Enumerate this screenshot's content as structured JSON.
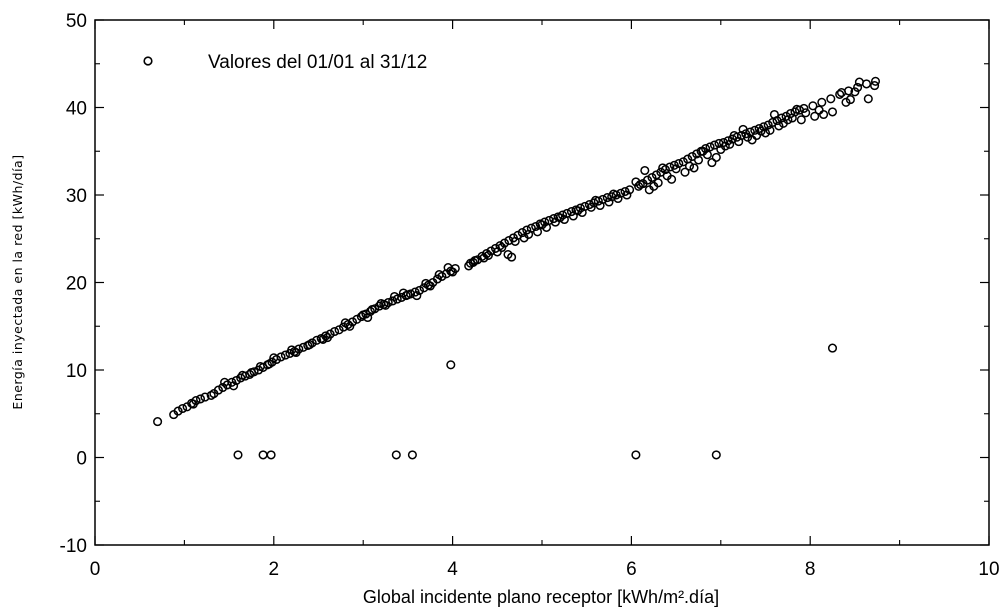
{
  "chart_data": {
    "type": "scatter",
    "xlabel": "Global incidente plano receptor [kWh/m².día]",
    "ylabel": "Energía   inyectada   en   la   red   [kWh/día]",
    "xlim": [
      0,
      10
    ],
    "ylim": [
      -10,
      50
    ],
    "x_ticks": [
      0,
      2,
      4,
      6,
      8,
      10
    ],
    "x_tick_labels": [
      "0",
      "2",
      "4",
      "6",
      "8",
      "10"
    ],
    "y_ticks": [
      -10,
      0,
      10,
      20,
      30,
      40,
      50
    ],
    "y_tick_labels": [
      "-10",
      "0",
      "10",
      "20",
      "30",
      "40",
      "50"
    ],
    "grid": false,
    "legend_position": "top-left",
    "marker_color": "#000000",
    "series": [
      {
        "name": "Valores del 01/01 al 31/12",
        "marker": "open-circle",
        "points": [
          [
            0.7,
            4.1
          ],
          [
            0.88,
            4.9
          ],
          [
            0.93,
            5.3
          ],
          [
            0.98,
            5.6
          ],
          [
            1.03,
            5.8
          ],
          [
            1.08,
            6.2
          ],
          [
            1.13,
            6.5
          ],
          [
            1.18,
            6.7
          ],
          [
            1.23,
            6.9
          ],
          [
            1.33,
            7.3
          ],
          [
            1.38,
            7.7
          ],
          [
            1.43,
            8.0
          ],
          [
            1.48,
            8.3
          ],
          [
            1.53,
            8.6
          ],
          [
            1.58,
            8.8
          ],
          [
            1.63,
            9.1
          ],
          [
            1.68,
            9.3
          ],
          [
            1.73,
            9.5
          ],
          [
            1.78,
            9.8
          ],
          [
            1.83,
            10.0
          ],
          [
            1.88,
            10.3
          ],
          [
            1.93,
            10.6
          ],
          [
            1.98,
            10.9
          ],
          [
            2.03,
            11.2
          ],
          [
            2.08,
            11.5
          ],
          [
            2.13,
            11.7
          ],
          [
            2.18,
            11.9
          ],
          [
            2.23,
            12.1
          ],
          [
            2.28,
            12.4
          ],
          [
            2.33,
            12.6
          ],
          [
            2.38,
            12.8
          ],
          [
            2.43,
            13.1
          ],
          [
            2.48,
            13.4
          ],
          [
            2.53,
            13.6
          ],
          [
            2.58,
            13.9
          ],
          [
            2.63,
            14.1
          ],
          [
            2.68,
            14.4
          ],
          [
            2.73,
            14.6
          ],
          [
            2.78,
            14.9
          ],
          [
            2.83,
            15.2
          ],
          [
            2.88,
            15.5
          ],
          [
            2.93,
            15.8
          ],
          [
            2.98,
            16.1
          ],
          [
            3.03,
            16.4
          ],
          [
            3.08,
            16.7
          ],
          [
            3.13,
            17.0
          ],
          [
            3.18,
            17.3
          ],
          [
            3.23,
            17.5
          ],
          [
            3.28,
            17.7
          ],
          [
            3.33,
            17.9
          ],
          [
            3.38,
            18.1
          ],
          [
            3.43,
            18.3
          ],
          [
            3.48,
            18.5
          ],
          [
            3.53,
            18.7
          ],
          [
            3.58,
            18.9
          ],
          [
            3.63,
            19.1
          ],
          [
            3.68,
            19.4
          ],
          [
            3.73,
            19.7
          ],
          [
            3.78,
            20.0
          ],
          [
            3.83,
            20.4
          ],
          [
            3.88,
            20.7
          ],
          [
            3.93,
            21.0
          ],
          [
            3.98,
            21.3
          ],
          [
            4.03,
            21.6
          ],
          [
            4.18,
            21.9
          ],
          [
            4.23,
            22.3
          ],
          [
            4.28,
            22.6
          ],
          [
            4.33,
            23.0
          ],
          [
            4.38,
            23.3
          ],
          [
            4.43,
            23.6
          ],
          [
            4.48,
            23.9
          ],
          [
            4.53,
            24.2
          ],
          [
            4.58,
            24.5
          ],
          [
            4.63,
            24.8
          ],
          [
            4.68,
            25.1
          ],
          [
            4.73,
            25.4
          ],
          [
            4.78,
            25.7
          ],
          [
            4.83,
            26.0
          ],
          [
            4.88,
            26.2
          ],
          [
            4.93,
            26.4
          ],
          [
            4.98,
            26.7
          ],
          [
            5.03,
            26.9
          ],
          [
            5.08,
            27.1
          ],
          [
            5.13,
            27.3
          ],
          [
            5.18,
            27.5
          ],
          [
            5.23,
            27.7
          ],
          [
            5.28,
            27.9
          ],
          [
            5.33,
            28.1
          ],
          [
            5.38,
            28.3
          ],
          [
            5.43,
            28.5
          ],
          [
            5.48,
            28.7
          ],
          [
            5.53,
            28.9
          ],
          [
            5.58,
            29.1
          ],
          [
            5.63,
            29.3
          ],
          [
            5.68,
            29.5
          ],
          [
            5.73,
            29.7
          ],
          [
            5.78,
            29.8
          ],
          [
            5.83,
            30.0
          ],
          [
            5.88,
            30.2
          ],
          [
            5.93,
            30.4
          ],
          [
            5.98,
            30.6
          ],
          [
            6.08,
            31.0
          ],
          [
            6.13,
            31.3
          ],
          [
            6.18,
            31.7
          ],
          [
            6.23,
            32.0
          ],
          [
            6.28,
            32.3
          ],
          [
            6.33,
            32.6
          ],
          [
            6.38,
            32.9
          ],
          [
            6.43,
            33.2
          ],
          [
            6.48,
            33.4
          ],
          [
            6.53,
            33.6
          ],
          [
            6.58,
            33.8
          ],
          [
            6.63,
            34.1
          ],
          [
            6.68,
            34.4
          ],
          [
            6.73,
            34.7
          ],
          [
            6.78,
            35.0
          ],
          [
            6.83,
            35.3
          ],
          [
            6.88,
            35.5
          ],
          [
            6.93,
            35.7
          ],
          [
            6.98,
            35.9
          ],
          [
            7.03,
            36.0
          ],
          [
            7.08,
            36.2
          ],
          [
            7.13,
            36.4
          ],
          [
            7.18,
            36.6
          ],
          [
            7.23,
            36.8
          ],
          [
            7.28,
            37.0
          ],
          [
            7.33,
            37.2
          ],
          [
            7.38,
            37.4
          ],
          [
            7.43,
            37.6
          ],
          [
            7.48,
            37.8
          ],
          [
            7.53,
            38.0
          ],
          [
            7.58,
            38.3
          ],
          [
            7.63,
            38.5
          ],
          [
            7.68,
            38.8
          ],
          [
            7.73,
            39.0
          ],
          [
            7.78,
            39.3
          ],
          [
            7.83,
            39.5
          ],
          [
            7.88,
            39.7
          ],
          [
            7.93,
            39.9
          ],
          [
            8.03,
            40.2
          ],
          [
            8.13,
            40.6
          ],
          [
            8.23,
            41.0
          ],
          [
            8.33,
            41.5
          ],
          [
            8.43,
            41.9
          ],
          [
            8.53,
            42.3
          ],
          [
            8.63,
            42.7
          ],
          [
            8.73,
            43.0
          ],
          [
            1.1,
            6.1
          ],
          [
            1.3,
            7.1
          ],
          [
            1.55,
            8.2
          ],
          [
            1.75,
            9.7
          ],
          [
            1.85,
            10.4
          ],
          [
            2.0,
            11.4
          ],
          [
            2.2,
            12.3
          ],
          [
            2.4,
            12.9
          ],
          [
            2.6,
            13.7
          ],
          [
            2.8,
            15.4
          ],
          [
            3.0,
            16.3
          ],
          [
            3.1,
            16.9
          ],
          [
            3.2,
            17.6
          ],
          [
            3.35,
            18.4
          ],
          [
            3.45,
            18.8
          ],
          [
            3.6,
            18.5
          ],
          [
            3.7,
            19.9
          ],
          [
            3.85,
            20.9
          ],
          [
            3.95,
            21.7
          ],
          [
            4.2,
            22.2
          ],
          [
            4.35,
            22.8
          ],
          [
            4.5,
            23.5
          ],
          [
            4.62,
            23.2
          ],
          [
            4.66,
            22.9
          ],
          [
            4.8,
            25.1
          ],
          [
            4.95,
            25.8
          ],
          [
            5.05,
            26.3
          ],
          [
            5.15,
            26.9
          ],
          [
            5.25,
            27.2
          ],
          [
            5.35,
            27.6
          ],
          [
            5.45,
            28.0
          ],
          [
            5.55,
            28.6
          ],
          [
            5.65,
            28.8
          ],
          [
            5.75,
            29.2
          ],
          [
            5.85,
            29.6
          ],
          [
            5.95,
            30.0
          ],
          [
            6.05,
            31.5
          ],
          [
            6.15,
            32.8
          ],
          [
            6.2,
            30.6
          ],
          [
            6.25,
            31.0
          ],
          [
            6.3,
            31.4
          ],
          [
            6.35,
            33.1
          ],
          [
            6.4,
            32.2
          ],
          [
            6.45,
            31.8
          ],
          [
            6.5,
            33.0
          ],
          [
            6.6,
            32.6
          ],
          [
            6.7,
            33.1
          ],
          [
            6.75,
            34.0
          ],
          [
            6.85,
            34.6
          ],
          [
            6.9,
            33.7
          ],
          [
            6.95,
            34.3
          ],
          [
            7.0,
            35.2
          ],
          [
            7.1,
            35.8
          ],
          [
            7.15,
            36.8
          ],
          [
            7.2,
            36.1
          ],
          [
            7.25,
            37.5
          ],
          [
            7.3,
            36.6
          ],
          [
            7.35,
            36.3
          ],
          [
            7.4,
            36.8
          ],
          [
            7.5,
            37.1
          ],
          [
            7.55,
            37.4
          ],
          [
            7.6,
            39.2
          ],
          [
            7.65,
            37.9
          ],
          [
            7.7,
            38.2
          ],
          [
            7.75,
            38.6
          ],
          [
            7.8,
            38.8
          ],
          [
            7.9,
            38.6
          ],
          [
            7.95,
            39.4
          ],
          [
            8.05,
            39.0
          ],
          [
            8.15,
            39.2
          ],
          [
            8.25,
            39.5
          ],
          [
            8.35,
            41.7
          ],
          [
            8.45,
            40.9
          ],
          [
            8.55,
            42.9
          ],
          [
            8.65,
            41.0
          ],
          [
            8.72,
            42.5
          ],
          [
            1.45,
            8.6
          ],
          [
            1.65,
            9.4
          ],
          [
            1.95,
            10.7
          ],
          [
            2.25,
            12.0
          ],
          [
            2.55,
            13.5
          ],
          [
            2.85,
            15.0
          ],
          [
            3.05,
            16.0
          ],
          [
            3.25,
            17.4
          ],
          [
            3.5,
            18.6
          ],
          [
            3.75,
            19.6
          ],
          [
            4.0,
            21.2
          ],
          [
            4.25,
            22.5
          ],
          [
            4.4,
            23.1
          ],
          [
            4.55,
            24.0
          ],
          [
            4.7,
            24.7
          ],
          [
            4.85,
            25.5
          ],
          [
            5.0,
            26.6
          ],
          [
            5.2,
            27.4
          ],
          [
            5.4,
            28.2
          ],
          [
            5.6,
            29.4
          ],
          [
            5.8,
            30.1
          ],
          [
            6.1,
            31.2
          ],
          [
            6.65,
            33.3
          ],
          [
            6.8,
            35.0
          ],
          [
            7.05,
            35.6
          ],
          [
            7.45,
            37.3
          ],
          [
            7.85,
            39.8
          ],
          [
            8.1,
            39.7
          ],
          [
            8.4,
            40.6
          ],
          [
            8.5,
            41.8
          ],
          [
            1.6,
            0.3
          ],
          [
            1.88,
            0.3
          ],
          [
            1.97,
            0.3
          ],
          [
            3.37,
            0.3
          ],
          [
            3.55,
            0.3
          ],
          [
            6.05,
            0.3
          ],
          [
            6.95,
            0.3
          ],
          [
            3.98,
            10.6
          ],
          [
            8.25,
            12.5
          ]
        ]
      }
    ]
  }
}
